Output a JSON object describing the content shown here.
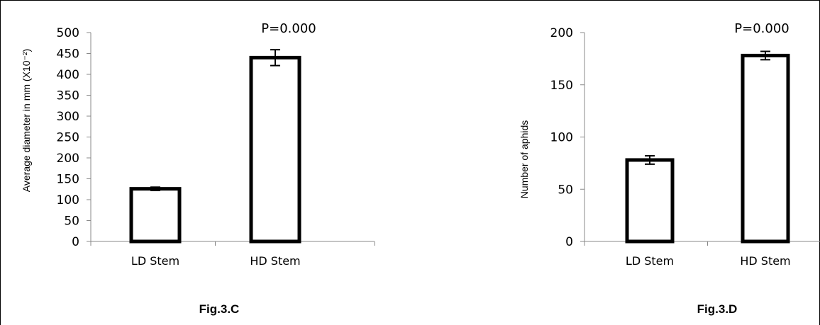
{
  "chart_data": [
    {
      "type": "bar",
      "categories": [
        "LD Stem",
        "HD Stem"
      ],
      "values": [
        126,
        440
      ],
      "errors": [
        4,
        19
      ],
      "ylabel": "Average diameter in mm (X10⁻²)",
      "ylim": [
        0,
        500
      ],
      "yticks": [
        "0",
        "50",
        "100",
        "150",
        "200",
        "250",
        "300",
        "350",
        "400",
        "450",
        "500"
      ],
      "annotation": "P=0.000",
      "caption": "Fig.3.C"
    },
    {
      "type": "bar",
      "categories": [
        "LD Stem",
        "HD Stem"
      ],
      "values": [
        78,
        178
      ],
      "errors": [
        4,
        4
      ],
      "ylabel": "Number of aphids",
      "ylim": [
        0,
        200
      ],
      "yticks": [
        "0",
        "50",
        "100",
        "150",
        "200"
      ],
      "annotation": "P=0.000",
      "caption": "Fig.3.D"
    }
  ]
}
